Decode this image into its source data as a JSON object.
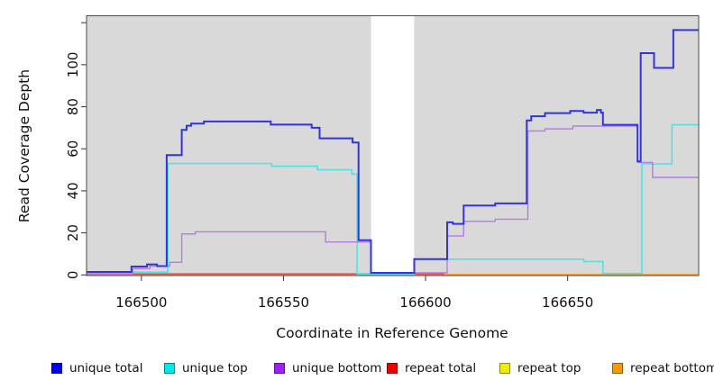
{
  "chart_data": {
    "type": "line",
    "subtype": "step-coverage-plot",
    "title": "",
    "xlabel": "Coordinate in Reference Genome",
    "ylabel": "Read Coverage Depth",
    "x_ticks": [
      166500,
      166550,
      166600,
      166650
    ],
    "y_ticks": [
      0,
      20,
      40,
      60,
      80,
      100
    ],
    "y_ticks_unlabeled": [
      120
    ],
    "xlim": [
      166480.7,
      166696.1
    ],
    "ylim": [
      0,
      123.3
    ],
    "grid": false,
    "panel_bg": "#d9d9d9",
    "box_color": "#4a4a4a",
    "no_data_gap": {
      "from": 166580.8,
      "to": 166596.0,
      "fill": "#ffffff"
    },
    "legend_position": "bottom",
    "series": [
      {
        "name": "unique total",
        "line_color": "#3333e0",
        "legend_color": "#0000ee",
        "width": 2,
        "steps": [
          [
            166480.7,
            1.4
          ],
          [
            166496.5,
            4
          ],
          [
            166502,
            5
          ],
          [
            166505.5,
            4.2
          ],
          [
            166508.9,
            57
          ],
          [
            166514.2,
            69
          ],
          [
            166515.9,
            71
          ],
          [
            166517.5,
            72
          ],
          [
            166522,
            73
          ],
          [
            166545.5,
            71.5
          ],
          [
            166559.9,
            70
          ],
          [
            166562.7,
            65
          ],
          [
            166574.3,
            63
          ],
          [
            166576.4,
            16.5
          ],
          [
            166580.8,
            1
          ],
          [
            166596,
            7.5
          ],
          [
            166607.6,
            25
          ],
          [
            166609.6,
            24.3
          ],
          [
            166613.4,
            33
          ],
          [
            166624.5,
            34
          ],
          [
            166635.6,
            73.5
          ],
          [
            166637.2,
            75.5
          ],
          [
            166642,
            77
          ],
          [
            166650.9,
            78
          ],
          [
            166655.6,
            77.2
          ],
          [
            166660.3,
            78.5
          ],
          [
            166661.7,
            77.2
          ],
          [
            166662.4,
            71.4
          ],
          [
            166674.6,
            54
          ],
          [
            166675.7,
            105.5
          ],
          [
            166680.4,
            98.5
          ],
          [
            166687.2,
            116.5
          ]
        ]
      },
      {
        "name": "unique top",
        "line_color": "#55e0e0",
        "legend_color": "#00e8e8",
        "width": 1.6,
        "steps": [
          [
            166480.7,
            1.3
          ],
          [
            166509.3,
            53
          ],
          [
            166545.8,
            51.7
          ],
          [
            166562,
            50
          ],
          [
            166574,
            48
          ],
          [
            166575.9,
            0.3
          ],
          [
            166596,
            7.5
          ],
          [
            166655.7,
            6.4
          ],
          [
            166662.4,
            0.7
          ],
          [
            166676.1,
            52.8
          ],
          [
            166686.7,
            71.4
          ]
        ]
      },
      {
        "name": "unique bottom",
        "line_color": "#b27ce0",
        "legend_color": "#a020f0",
        "width": 1.4,
        "steps": [
          [
            166480.7,
            0.6
          ],
          [
            166497,
            3
          ],
          [
            166503,
            4.2
          ],
          [
            166510,
            6
          ],
          [
            166514.2,
            19.5
          ],
          [
            166519,
            20.5
          ],
          [
            166564.8,
            15.7
          ],
          [
            166580.8,
            0.8
          ],
          [
            166596,
            1
          ],
          [
            166607.6,
            18.5
          ],
          [
            166613.4,
            25.5
          ],
          [
            166624.5,
            26.5
          ],
          [
            166636,
            68.5
          ],
          [
            166642,
            69.5
          ],
          [
            166651.8,
            70.8
          ],
          [
            166674.6,
            53.5
          ],
          [
            166679.9,
            46.4
          ]
        ]
      },
      {
        "name": "repeat total",
        "line_color": "#d4405c",
        "legend_color": "#ee0000",
        "width": 1.2,
        "end": 166606.5,
        "steps": [
          [
            166480.7,
            0.5
          ]
        ]
      },
      {
        "name": "repeat top",
        "line_color": "#eded4d",
        "legend_color": "#eeee00",
        "width": 1.2,
        "steps": [
          [
            166480.7,
            0.05
          ]
        ]
      },
      {
        "name": "repeat bottom",
        "line_color": "#ff9818",
        "legend_color": "#f59b00",
        "width": 2,
        "steps": [
          [
            166480.7,
            0.05
          ]
        ]
      }
    ]
  }
}
